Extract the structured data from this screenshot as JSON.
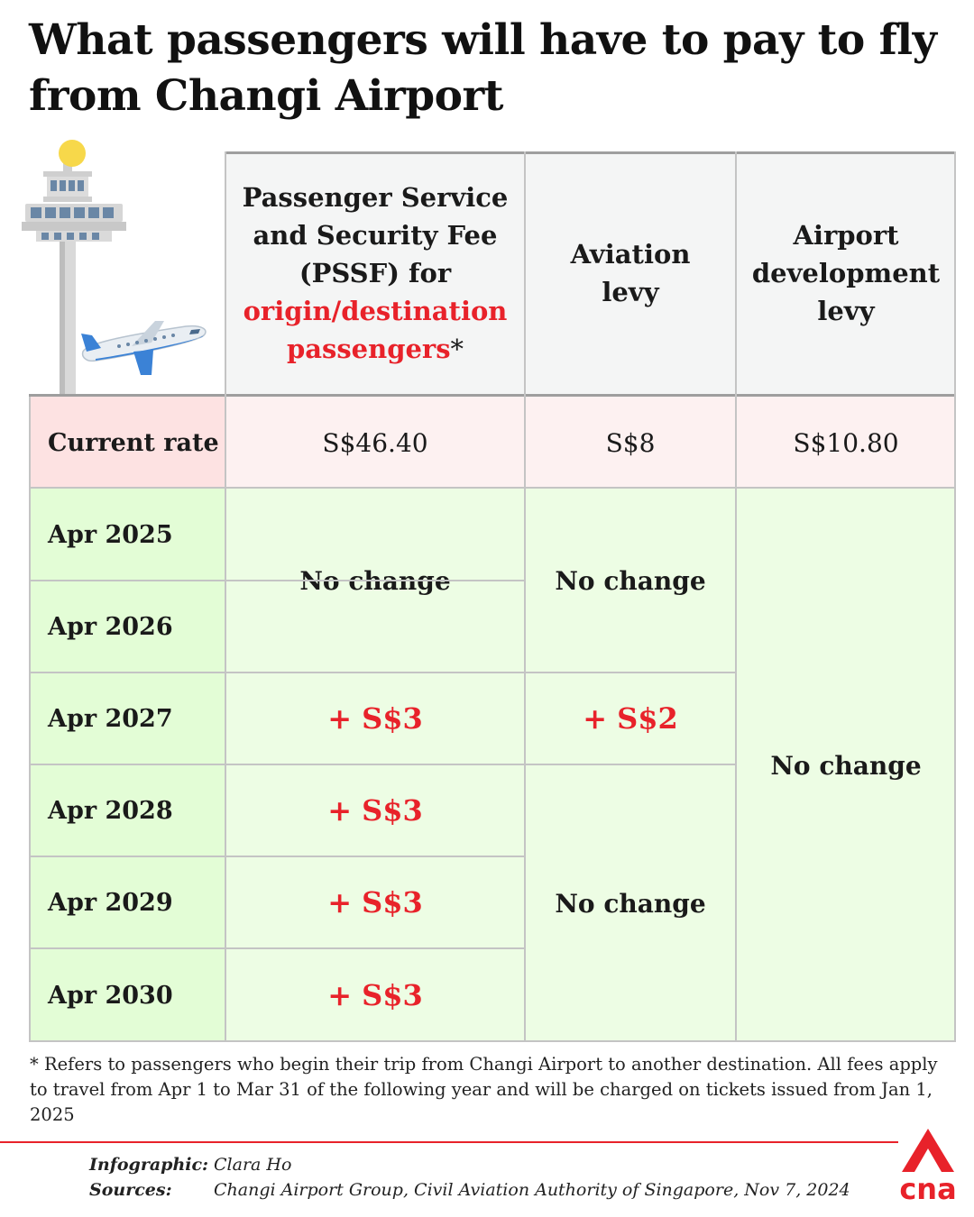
{
  "title": "What passengers will have to pay to fly from Changi Airport",
  "columns": {
    "pssf": {
      "line1": "Passenger Service",
      "line2": "and Security Fee",
      "line3": "(PSSF) for",
      "line4_red": "origin/destination",
      "line5_red": "passengers",
      "asterisk": "*"
    },
    "aviation": {
      "line1": "Aviation",
      "line2": "levy"
    },
    "development": {
      "line1": "Airport",
      "line2": "development",
      "line3": "levy"
    }
  },
  "current": {
    "label": "Current rate",
    "pssf": "S$46.40",
    "aviation": "S$8",
    "development": "S$10.80"
  },
  "years": [
    "Apr 2025",
    "Apr 2026",
    "Apr 2027",
    "Apr 2028",
    "Apr 2029",
    "Apr 2030"
  ],
  "cells": {
    "pssf_2025_2026": "No change",
    "aviation_2025_2026": "No change",
    "pssf_2027": "+ S$3",
    "aviation_2027": "+ S$2",
    "development_2025_2030": "No change",
    "pssf_2028": "+ S$3",
    "aviation_2028_2030": "No change",
    "pssf_2029": "+ S$3",
    "pssf_2030": "+ S$3"
  },
  "footnote": "* Refers to passengers who begin their trip from Changi Airport to another destination. All fees apply to travel from Apr 1 to Mar 31 of the following year and will be charged on tickets issued from Jan 1, 2025",
  "credits": {
    "infographic_label": "Infographic:",
    "infographic_value": "Clara Ho",
    "sources_label": "Sources:",
    "sources_value": "Changi Airport Group, Civil Aviation Authority of Singapore, Nov 7, 2024"
  },
  "logo_text": "cna",
  "icons": [
    "control-tower-icon",
    "airplane-icon",
    "cna-logo-icon"
  ],
  "colors": {
    "accent_red": "#e8222a",
    "current_label_bg": "#fde2e2",
    "current_cell_bg": "#fdf1f1",
    "year_label_bg": "#e3fdd6",
    "change_cell_bg": "#edfde4",
    "header_bg": "#f4f5f5"
  }
}
